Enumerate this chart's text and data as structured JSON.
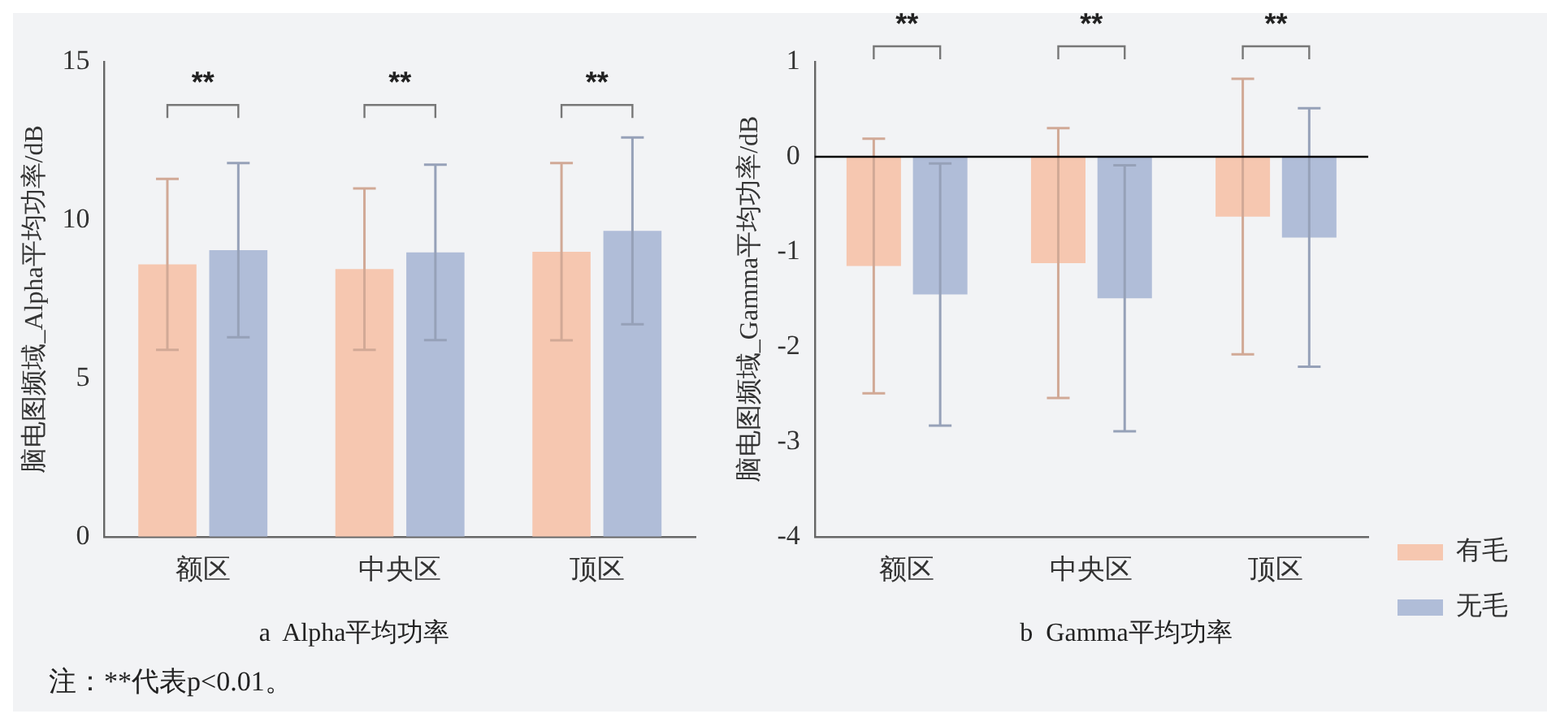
{
  "chart_data": [
    {
      "type": "bar",
      "title": "a  Alpha平均功率",
      "ylabel": "脑电图频域_Alpha平均功率/dB",
      "categories": [
        "额区",
        "中央区",
        "顶区"
      ],
      "series": [
        {
          "color": "#f6c7b0",
          "values": [
            8.6,
            8.45,
            9.0
          ],
          "errors": [
            2.7,
            2.55,
            2.8
          ]
        },
        {
          "color": "#b0bdd8",
          "values": [
            9.05,
            8.98,
            9.66
          ],
          "errors": [
            2.75,
            2.77,
            2.95
          ]
        }
      ],
      "ylim": [
        0,
        15
      ],
      "yticks": [
        0,
        5,
        10,
        15
      ],
      "grid": false,
      "legend": false,
      "annotations": [
        "**",
        "**",
        "**",
        "注：**代表p<0.01。"
      ]
    },
    {
      "type": "bar",
      "title": "b  Gamma平均功率",
      "ylabel": "脑电图频域_Gamma平均功率/dB",
      "categories": [
        "额区",
        "中央区",
        "顶区"
      ],
      "series": [
        {
          "name": "有毛",
          "color": "#f6c7b0",
          "values": [
            -1.15,
            -1.12,
            -0.63
          ],
          "errors": [
            1.34,
            1.42,
            1.45
          ]
        },
        {
          "name": "无毛",
          "color": "#b0bdd8",
          "values": [
            -1.45,
            -1.49,
            -0.85
          ],
          "errors": [
            1.38,
            1.4,
            1.36
          ]
        }
      ],
      "ylim": [
        -4,
        1
      ],
      "yticks": [
        -4,
        -3,
        -2,
        -1,
        0,
        1
      ],
      "grid": false,
      "legend": "right",
      "ref_lines": [
        {
          "axis": "y",
          "value": 0,
          "color": "#000000"
        }
      ],
      "annotations": [
        "**",
        "**",
        "**"
      ]
    }
  ]
}
